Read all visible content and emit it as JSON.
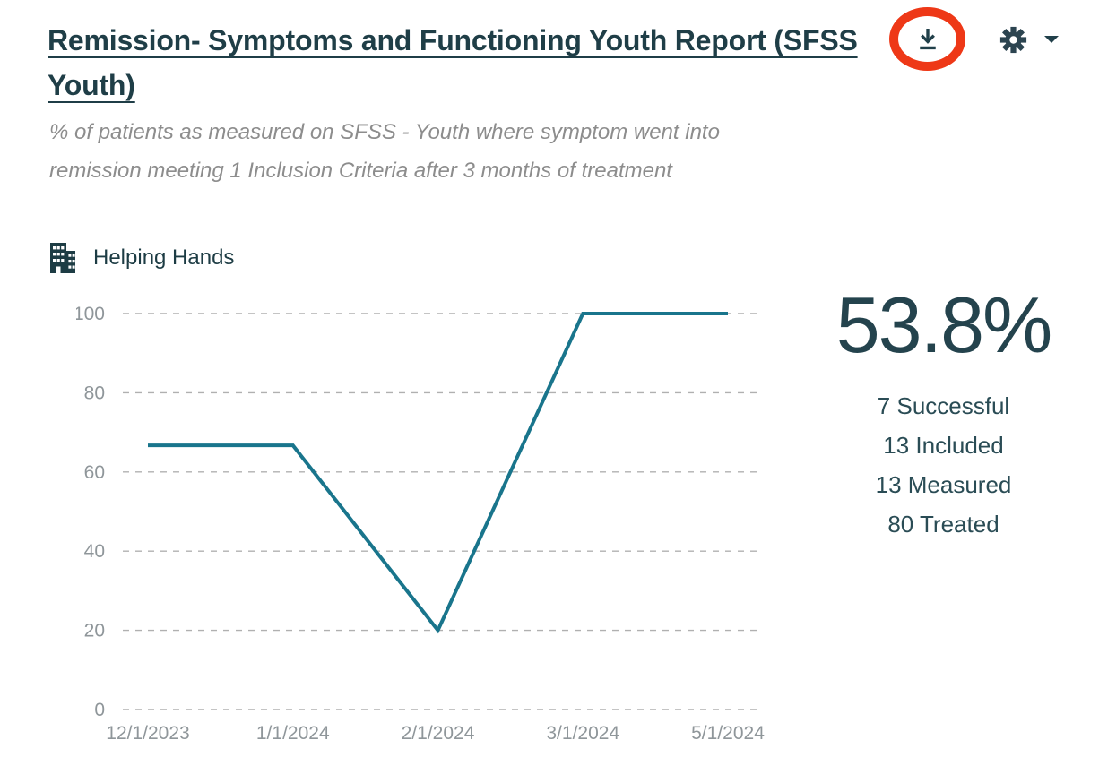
{
  "header": {
    "title": "Remission- Symptoms and Functioning Youth Report (SFSS Youth)",
    "subtitle": "% of patients as measured on SFSS - Youth where symptom went into remission meeting 1 Inclusion Criteria after 3 months of treatment",
    "actions": {
      "download": "download-icon",
      "settings": "gear-icon",
      "menu": "chevron-down-icon"
    },
    "annotation": {
      "shape": "red-circle-highlight",
      "color": "#ee3817",
      "target": "download-icon"
    }
  },
  "legend": {
    "icon": "building-icon",
    "label": "Helping Hands"
  },
  "summary": {
    "percentage": "53.8%",
    "stats": [
      "7 Successful",
      "13 Included",
      "13 Measured",
      "80 Treated"
    ]
  },
  "chart_data": {
    "type": "line",
    "title": "",
    "x": [
      "12/1/2023",
      "1/1/2024",
      "2/1/2024",
      "3/1/2024",
      "5/1/2024"
    ],
    "series": [
      {
        "name": "Helping Hands",
        "color": "#19758c",
        "values": [
          66.7,
          66.7,
          20,
          100,
          100
        ]
      }
    ],
    "ylim": [
      0,
      100
    ],
    "yticks": [
      0,
      20,
      40,
      60,
      80,
      100
    ],
    "grid": "horizontal-dashed",
    "legend_position": "top-left",
    "colors": {
      "grid": "#b0b0b0",
      "axis_text": "#8f969a"
    }
  }
}
